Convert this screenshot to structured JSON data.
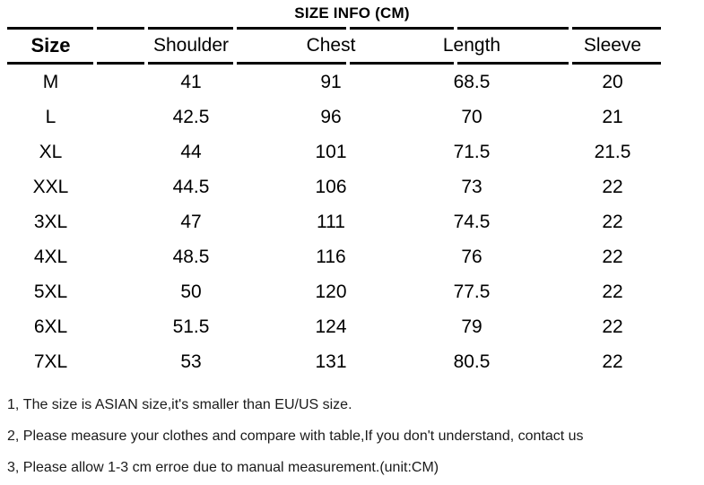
{
  "title": "SIZE INFO (CM)",
  "table": {
    "headers": [
      "Size",
      "Shoulder",
      "Chest",
      "Length",
      "Sleeve"
    ],
    "rows": [
      [
        "M",
        "41",
        "91",
        "68.5",
        "20"
      ],
      [
        "L",
        "42.5",
        "96",
        "70",
        "21"
      ],
      [
        "XL",
        "44",
        "101",
        "71.5",
        "21.5"
      ],
      [
        "XXL",
        "44.5",
        "106",
        "73",
        "22"
      ],
      [
        "3XL",
        "47",
        "111",
        "74.5",
        "22"
      ],
      [
        "4XL",
        "48.5",
        "116",
        "76",
        "22"
      ],
      [
        "5XL",
        "50",
        "120",
        "77.5",
        "22"
      ],
      [
        "6XL",
        "51.5",
        "124",
        "79",
        "22"
      ],
      [
        "7XL",
        "53",
        "131",
        "80.5",
        "22"
      ]
    ]
  },
  "notes": [
    "1、The size is ASIAN size,it's smaller than EU/US size.",
    "2、Please measure your clothes and compare with table,If you don't understand, contact us",
    "3、Please allow 1-3 cm erroe due to manual measurement.(unit:CM)"
  ],
  "colors": {
    "text": "#000000",
    "background": "#ffffff",
    "rule": "#000000"
  },
  "chart_data": {
    "type": "table",
    "title": "SIZE INFO (CM)",
    "unit": "CM",
    "columns": [
      "Size",
      "Shoulder",
      "Chest",
      "Length",
      "Sleeve"
    ],
    "rows": [
      [
        "M",
        41,
        91,
        68.5,
        20
      ],
      [
        "L",
        42.5,
        96,
        70,
        21
      ],
      [
        "XL",
        44,
        101,
        71.5,
        21.5
      ],
      [
        "XXL",
        44.5,
        106,
        73,
        22
      ],
      [
        "3XL",
        47,
        111,
        74.5,
        22
      ],
      [
        "4XL",
        48.5,
        116,
        76,
        22
      ],
      [
        "5XL",
        50,
        120,
        77.5,
        22
      ],
      [
        "6XL",
        51.5,
        124,
        79,
        22
      ],
      [
        "7XL",
        53,
        131,
        80.5,
        22
      ]
    ],
    "footnotes": [
      "1、The size is ASIAN size,it's smaller than EU/US size.",
      "2、Please measure your clothes and compare with table,If you don't understand, contact us",
      "3、Please allow 1-3 cm erroe due to manual measurement.(unit:CM)"
    ]
  }
}
